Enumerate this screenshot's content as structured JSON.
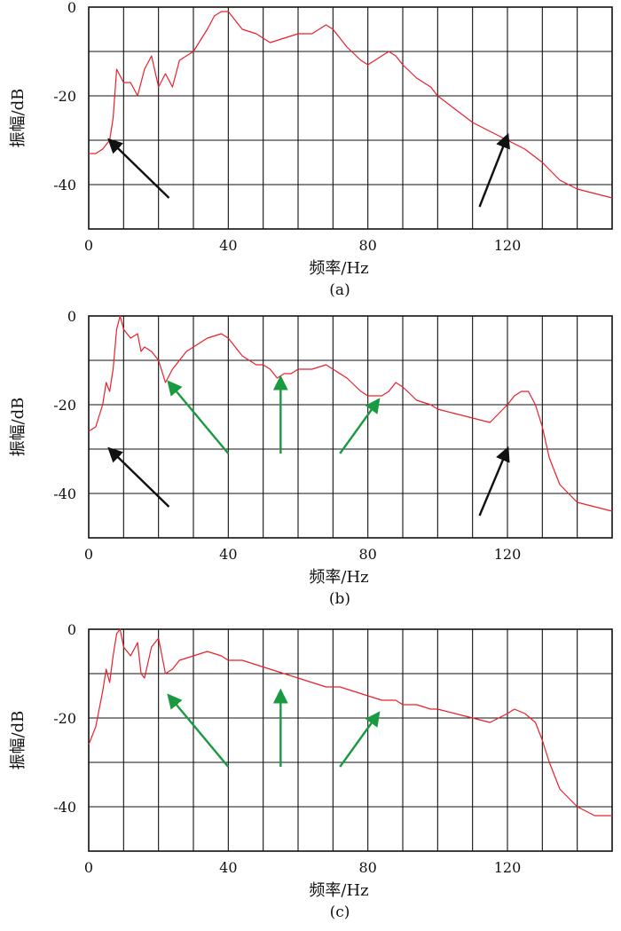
{
  "chart_data": [
    {
      "id": "a",
      "type": "line",
      "caption": "(a)",
      "xlabel": "频率/Hz",
      "ylabel": "振幅/dB",
      "xlim": [
        0,
        150
      ],
      "ylim": [
        -50,
        0
      ],
      "xticks": [
        0,
        40,
        80,
        120
      ],
      "yticks": [
        0,
        -20,
        -40
      ],
      "grid": true,
      "color": "#e8202a",
      "series": [
        {
          "x": [
            0,
            2,
            4,
            6,
            7,
            8,
            10,
            12,
            14,
            16,
            18,
            20,
            22,
            24,
            26,
            28,
            30,
            34,
            36,
            38,
            40,
            42,
            44,
            48,
            52,
            56,
            60,
            64,
            66,
            68,
            70,
            74,
            78,
            80,
            84,
            86,
            88,
            90,
            94,
            98,
            100,
            105,
            110,
            115,
            120,
            125,
            130,
            135,
            140,
            145,
            150
          ],
          "y": [
            -33,
            -33,
            -32,
            -30,
            -25,
            -14,
            -17,
            -17,
            -20,
            -14,
            -11,
            -18,
            -15,
            -18,
            -12,
            -11,
            -10,
            -5,
            -2,
            -1,
            -1,
            -3,
            -5,
            -6,
            -8,
            -7,
            -6,
            -6,
            -5,
            -4,
            -5,
            -9,
            -12,
            -13,
            -11,
            -10,
            -11,
            -13,
            -16,
            -18,
            -20,
            -23,
            -26,
            -28,
            -30,
            -32,
            -35,
            -39,
            -41,
            -42,
            -43
          ]
        }
      ],
      "arrows": [
        {
          "color": "#111111",
          "from": [
            23,
            -43
          ],
          "to": [
            6,
            -30
          ]
        },
        {
          "color": "#111111",
          "from": [
            112,
            -45
          ],
          "to": [
            120,
            -29
          ]
        }
      ]
    },
    {
      "id": "b",
      "type": "line",
      "caption": "(b)",
      "xlabel": "频率/Hz",
      "ylabel": "振幅/dB",
      "xlim": [
        0,
        150
      ],
      "ylim": [
        -50,
        0
      ],
      "xticks": [
        0,
        40,
        80,
        120
      ],
      "yticks": [
        0,
        -20,
        -40
      ],
      "grid": true,
      "color": "#e8202a",
      "series": [
        {
          "x": [
            0,
            2,
            4,
            5,
            6,
            7,
            8,
            9,
            10,
            12,
            14,
            15,
            16,
            18,
            20,
            22,
            24,
            26,
            28,
            30,
            34,
            38,
            40,
            42,
            44,
            46,
            48,
            50,
            52,
            54,
            56,
            58,
            60,
            64,
            68,
            70,
            74,
            78,
            80,
            84,
            86,
            88,
            90,
            94,
            98,
            100,
            105,
            110,
            115,
            120,
            122,
            124,
            126,
            128,
            130,
            132,
            135,
            140,
            145,
            150
          ],
          "y": [
            -26,
            -25,
            -20,
            -15,
            -17,
            -12,
            -3,
            0,
            -3,
            -5,
            -4,
            -8,
            -7,
            -8,
            -10,
            -15,
            -12,
            -10,
            -8,
            -7,
            -5,
            -4,
            -5,
            -7,
            -9,
            -10,
            -11,
            -11,
            -12,
            -14,
            -13,
            -13,
            -12,
            -12,
            -11,
            -12,
            -14,
            -17,
            -18,
            -18,
            -17,
            -15,
            -16,
            -19,
            -20,
            -21,
            -22,
            -23,
            -24,
            -20,
            -18,
            -17,
            -17,
            -20,
            -25,
            -32,
            -38,
            -42,
            -43,
            -44
          ]
        }
      ],
      "arrows": [
        {
          "color": "#111111",
          "from": [
            23,
            -43
          ],
          "to": [
            6,
            -30
          ]
        },
        {
          "color": "#111111",
          "from": [
            112,
            -45
          ],
          "to": [
            120,
            -30
          ]
        },
        {
          "color": "#1a9a40",
          "from": [
            40,
            -31
          ],
          "to": [
            23,
            -15
          ]
        },
        {
          "color": "#1a9a40",
          "from": [
            55,
            -31
          ],
          "to": [
            55,
            -14
          ]
        },
        {
          "color": "#1a9a40",
          "from": [
            72,
            -31
          ],
          "to": [
            83,
            -19
          ]
        }
      ]
    },
    {
      "id": "c",
      "type": "line",
      "caption": "(c)",
      "xlabel": "频率/Hz",
      "ylabel": "振幅/dB",
      "xlim": [
        0,
        150
      ],
      "ylim": [
        -50,
        0
      ],
      "xticks": [
        0,
        40,
        80,
        120
      ],
      "yticks": [
        0,
        -20,
        -40
      ],
      "grid": true,
      "color": "#e8202a",
      "series": [
        {
          "x": [
            0,
            2,
            4,
            5,
            6,
            7,
            8,
            9,
            10,
            12,
            14,
            15,
            16,
            18,
            20,
            22,
            24,
            26,
            30,
            34,
            38,
            40,
            44,
            48,
            52,
            56,
            60,
            64,
            68,
            72,
            76,
            80,
            84,
            88,
            90,
            94,
            98,
            100,
            105,
            110,
            115,
            120,
            122,
            125,
            128,
            130,
            132,
            135,
            140,
            145,
            150
          ],
          "y": [
            -26,
            -22,
            -14,
            -9,
            -12,
            -6,
            -1,
            0,
            -4,
            -6,
            -3,
            -10,
            -11,
            -4,
            -2,
            -10,
            -9,
            -7,
            -6,
            -5,
            -6,
            -7,
            -7,
            -8,
            -9,
            -10,
            -11,
            -12,
            -13,
            -13,
            -14,
            -15,
            -16,
            -16,
            -17,
            -17,
            -18,
            -18,
            -19,
            -20,
            -21,
            -19,
            -18,
            -19,
            -21,
            -25,
            -30,
            -36,
            -40,
            -42,
            -42
          ]
        }
      ],
      "arrows": [
        {
          "color": "#1a9a40",
          "from": [
            40,
            -31
          ],
          "to": [
            23,
            -15
          ]
        },
        {
          "color": "#1a9a40",
          "from": [
            55,
            -31
          ],
          "to": [
            55,
            -14
          ]
        },
        {
          "color": "#1a9a40",
          "from": [
            72,
            -31
          ],
          "to": [
            83,
            -19
          ]
        }
      ]
    }
  ]
}
